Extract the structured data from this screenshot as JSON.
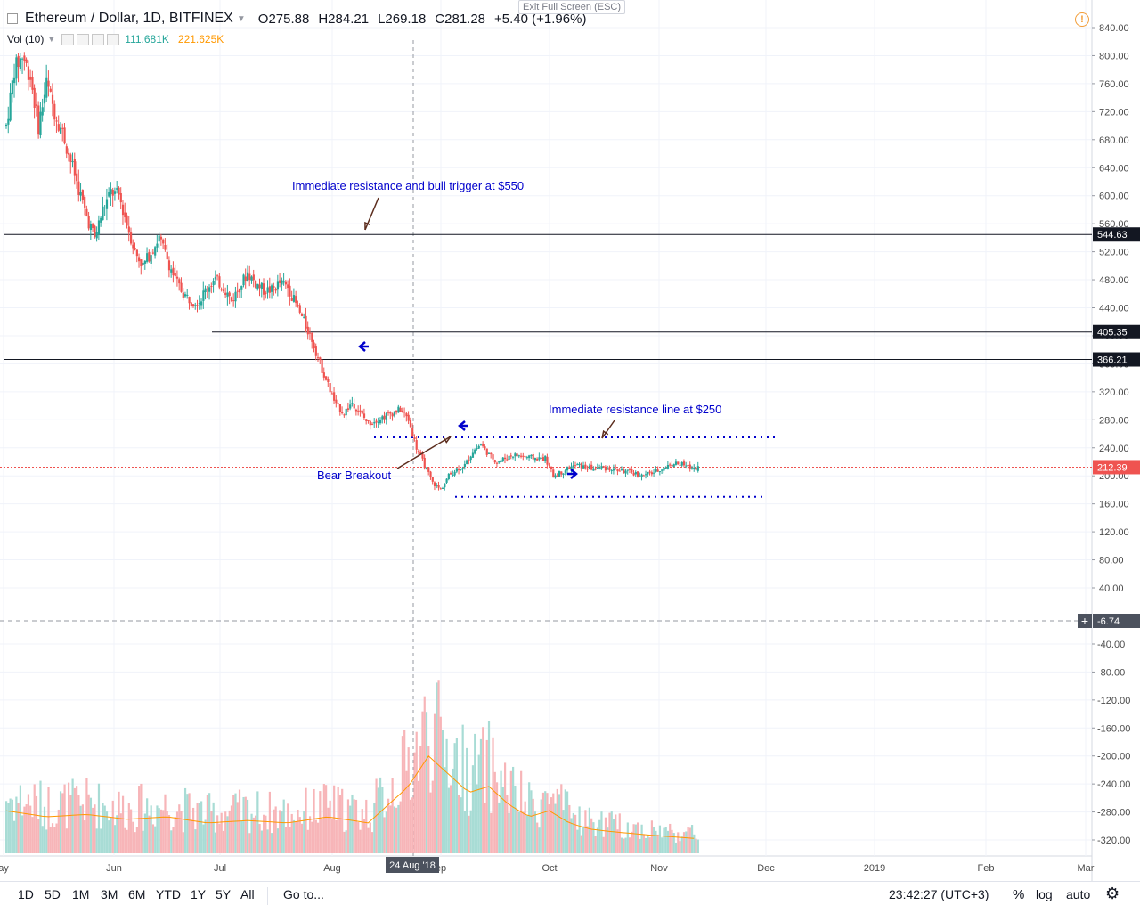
{
  "header": {
    "symbol_title": "Ethereum / Dollar, 1D, BITFINEX",
    "open_label": "O",
    "open": "275.88",
    "high_label": "H",
    "high": "284.21",
    "low_label": "L",
    "low": "269.18",
    "close_label": "C",
    "close": "281.28",
    "change": "+5.40 (+1.96%)",
    "exit_fullscreen": "Exit Full Screen (ESC)"
  },
  "volume_header": {
    "label": "Vol (10)",
    "value1": "111.681K",
    "value2": "221.625K",
    "value1_color": "#26a69a",
    "value2_color": "#ff9800"
  },
  "toolbar": {
    "ranges": [
      "1D",
      "5D",
      "1M",
      "3M",
      "6M",
      "YTD",
      "1Y",
      "5Y",
      "All"
    ],
    "goto": "Go to...",
    "clock": "23:42:27 (UTC+3)",
    "percent": "%",
    "log": "log",
    "auto": "auto"
  },
  "colors": {
    "up": "#26a69a",
    "down": "#ef5350",
    "annotation": "#0000cc",
    "arrow": "#5c2d1e",
    "ma_line": "#ff9800",
    "price_line": "#ef5350"
  },
  "chart_data": {
    "type": "candlestick",
    "price_axis": {
      "ticks": [
        "840.00",
        "800.00",
        "760.00",
        "720.00",
        "680.00",
        "640.00",
        "600.00",
        "560.00",
        "520.00",
        "480.00",
        "440.00",
        "400.00",
        "360.00",
        "320.00",
        "280.00",
        "240.00",
        "200.00",
        "160.00",
        "120.00",
        "80.00",
        "40.00"
      ],
      "range": [
        20,
        860
      ]
    },
    "volume_axis": {
      "ticks": [
        "-40.00",
        "-80.00",
        "-120.00",
        "-160.00",
        "-200.00",
        "-240.00",
        "-280.00",
        "-320.00"
      ]
    },
    "time_axis": {
      "labels": [
        "ay",
        "Jun",
        "Jul",
        "Aug",
        "ep",
        "Oct",
        "Nov",
        "Dec",
        "2019",
        "Feb",
        "Mar"
      ],
      "crosshair_label": "24 Aug '18"
    },
    "horizontal_levels": [
      {
        "value": 544.63,
        "label": "544.63"
      },
      {
        "value": 405.35,
        "label": "405.35"
      },
      {
        "value": 366.21,
        "label": "366.21"
      }
    ],
    "current_price": {
      "value": 212.39,
      "label": "212.39"
    },
    "crosshair_value": "-6.74",
    "annotations": [
      "Immediate resistance and bull trigger at $550",
      "Immediate resistance line at $250",
      "Bear Breakout"
    ],
    "dotted_levels": [
      {
        "name": "resistance",
        "value": 255
      },
      {
        "name": "support",
        "value": 170
      }
    ],
    "price_path": [
      [
        0,
        700
      ],
      [
        4,
        780
      ],
      [
        8,
        800
      ],
      [
        12,
        770
      ],
      [
        16,
        700
      ],
      [
        20,
        760
      ],
      [
        24,
        720
      ],
      [
        28,
        690
      ],
      [
        32,
        650
      ],
      [
        36,
        610
      ],
      [
        40,
        570
      ],
      [
        44,
        540
      ],
      [
        48,
        580
      ],
      [
        52,
        605
      ],
      [
        56,
        600
      ],
      [
        60,
        560
      ],
      [
        64,
        520
      ],
      [
        68,
        500
      ],
      [
        72,
        520
      ],
      [
        76,
        540
      ],
      [
        80,
        510
      ],
      [
        84,
        480
      ],
      [
        88,
        460
      ],
      [
        92,
        450
      ],
      [
        96,
        450
      ],
      [
        100,
        470
      ],
      [
        104,
        480
      ],
      [
        108,
        470
      ],
      [
        112,
        450
      ],
      [
        116,
        470
      ],
      [
        120,
        490
      ],
      [
        124,
        475
      ],
      [
        128,
        465
      ],
      [
        132,
        465
      ],
      [
        136,
        475
      ],
      [
        140,
        470
      ],
      [
        144,
        445
      ],
      [
        148,
        420
      ],
      [
        152,
        395
      ],
      [
        156,
        360
      ],
      [
        160,
        330
      ],
      [
        164,
        300
      ],
      [
        168,
        290
      ],
      [
        172,
        305
      ],
      [
        176,
        290
      ],
      [
        180,
        275
      ],
      [
        184,
        280
      ],
      [
        188,
        285
      ],
      [
        192,
        290
      ],
      [
        196,
        295
      ],
      [
        200,
        280
      ],
      [
        204,
        240
      ],
      [
        208,
        215
      ],
      [
        212,
        190
      ],
      [
        216,
        180
      ],
      [
        220,
        200
      ],
      [
        224,
        210
      ],
      [
        228,
        215
      ],
      [
        232,
        235
      ],
      [
        236,
        245
      ],
      [
        240,
        230
      ],
      [
        244,
        220
      ],
      [
        248,
        225
      ],
      [
        252,
        230
      ],
      [
        256,
        228
      ],
      [
        260,
        226
      ],
      [
        264,
        225
      ],
      [
        268,
        225
      ],
      [
        272,
        200
      ],
      [
        276,
        205
      ],
      [
        280,
        212
      ],
      [
        284,
        215
      ],
      [
        288,
        212
      ],
      [
        292,
        210
      ],
      [
        296,
        212
      ],
      [
        300,
        210
      ],
      [
        304,
        208
      ],
      [
        308,
        206
      ],
      [
        312,
        204
      ],
      [
        316,
        200
      ],
      [
        320,
        203
      ],
      [
        324,
        208
      ],
      [
        328,
        213
      ],
      [
        332,
        218
      ],
      [
        336,
        216
      ],
      [
        340,
        212
      ],
      [
        344,
        212
      ]
    ],
    "volume_profile": [
      [
        0,
        0.35
      ],
      [
        20,
        0.3
      ],
      [
        40,
        0.32
      ],
      [
        60,
        0.28
      ],
      [
        80,
        0.3
      ],
      [
        100,
        0.25
      ],
      [
        120,
        0.27
      ],
      [
        140,
        0.25
      ],
      [
        160,
        0.3
      ],
      [
        180,
        0.25
      ],
      [
        200,
        0.55
      ],
      [
        210,
        0.8
      ],
      [
        220,
        0.65
      ],
      [
        230,
        0.5
      ],
      [
        240,
        0.55
      ],
      [
        250,
        0.4
      ],
      [
        260,
        0.3
      ],
      [
        270,
        0.35
      ],
      [
        280,
        0.25
      ],
      [
        290,
        0.2
      ],
      [
        300,
        0.18
      ],
      [
        320,
        0.15
      ],
      [
        344,
        0.12
      ]
    ],
    "grid": true
  }
}
